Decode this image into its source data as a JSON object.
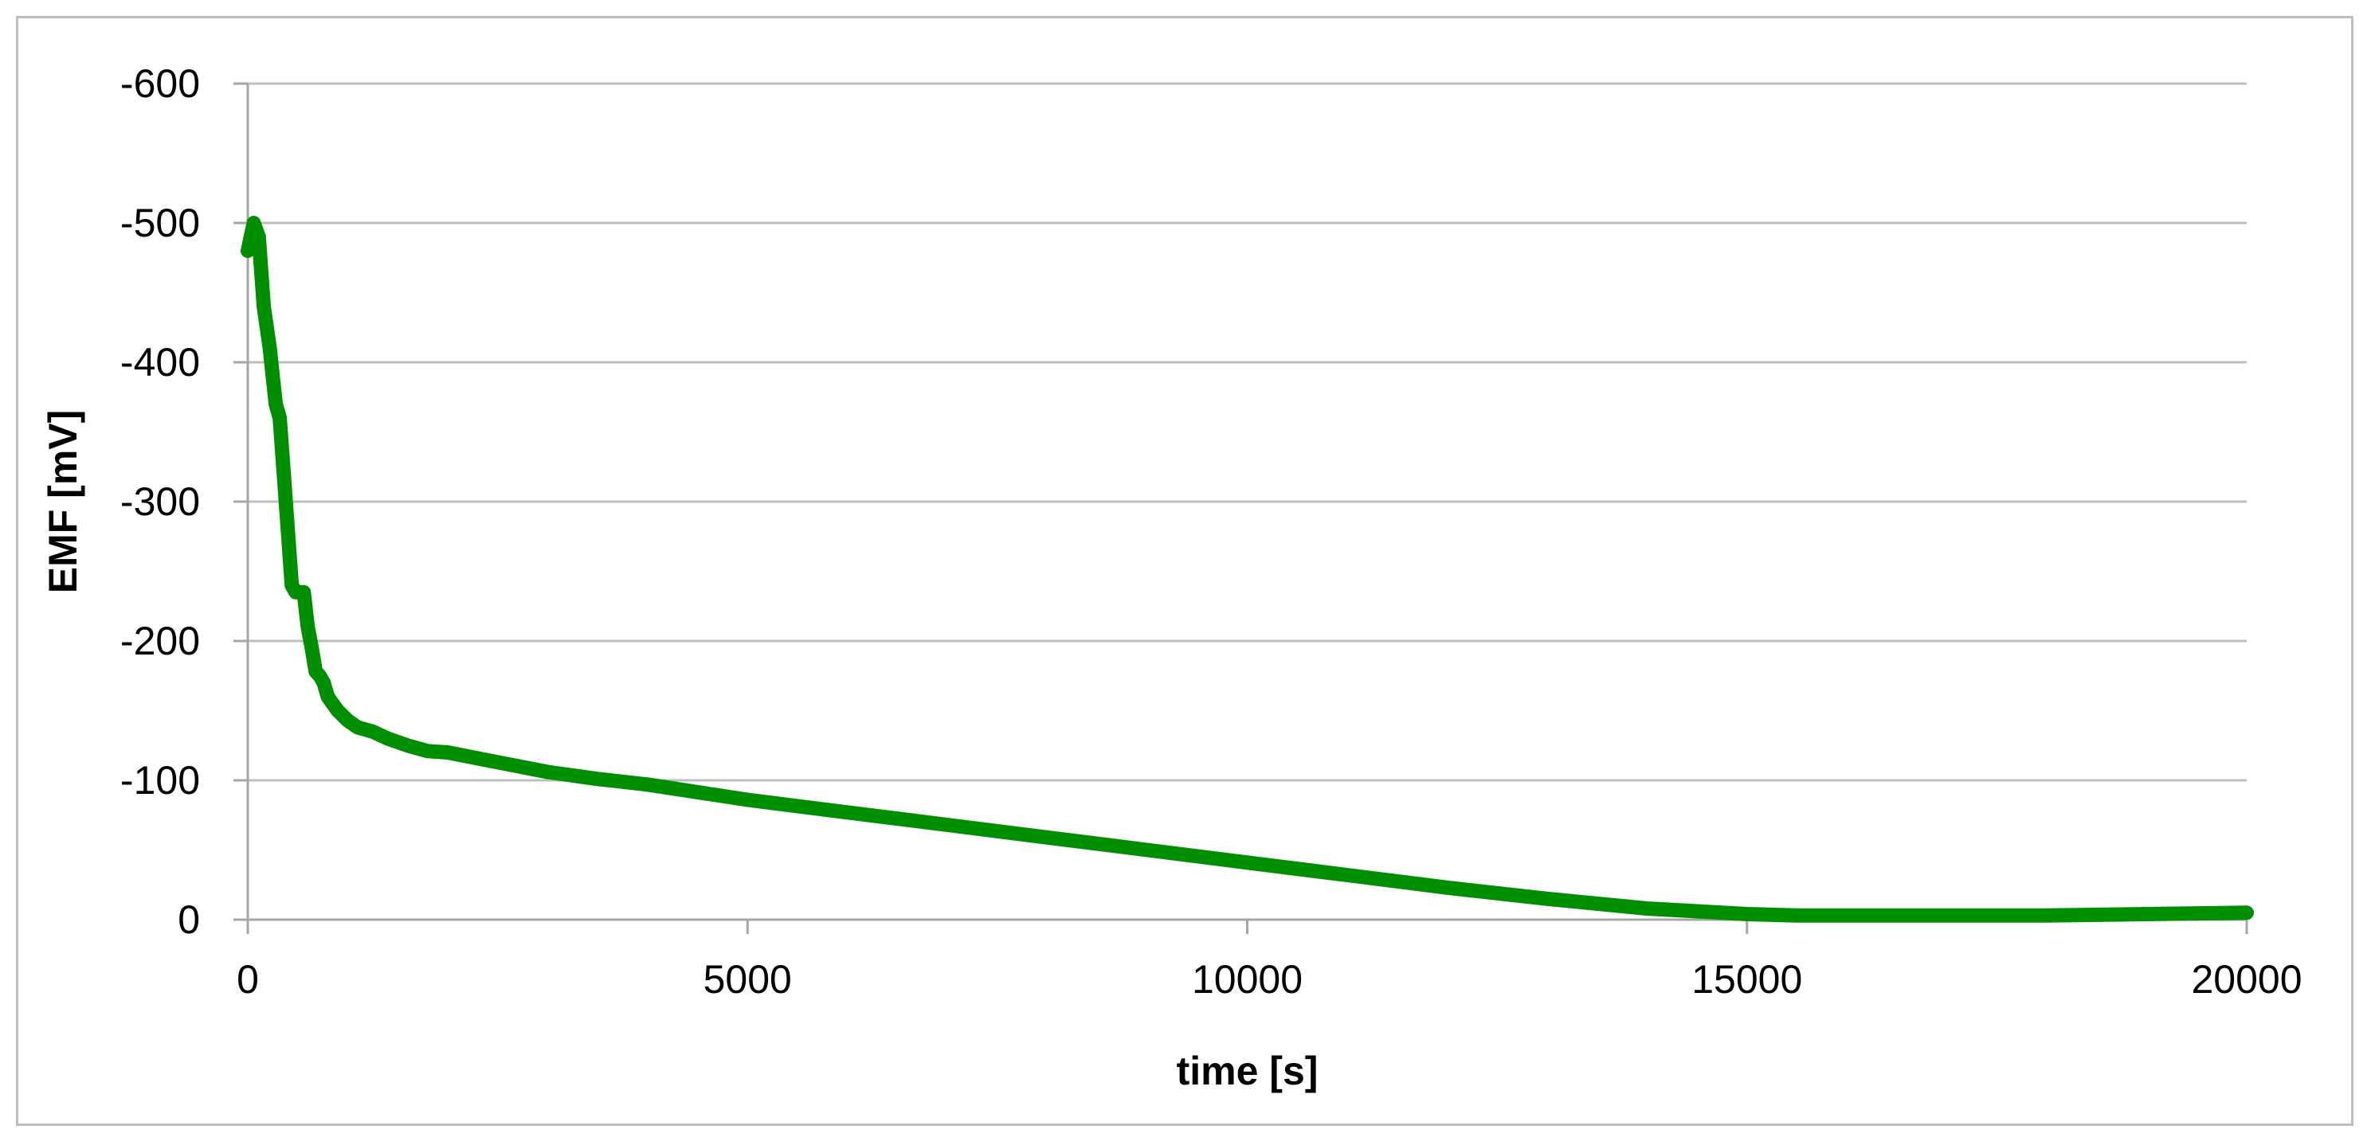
{
  "chart_data": {
    "type": "line",
    "title": "",
    "xlabel": "time [s]",
    "ylabel": "EMF [mV]",
    "xlim": [
      0,
      20000
    ],
    "ylim": [
      0,
      -600
    ],
    "x_ticks": [
      "0",
      "5000",
      "10000",
      "15000",
      "20000"
    ],
    "y_ticks": [
      "0",
      "-100",
      "-200",
      "-300",
      "-400",
      "-500",
      "-600"
    ],
    "x_tick_values": [
      0,
      5000,
      10000,
      15000,
      20000
    ],
    "y_tick_values": [
      0,
      -100,
      -200,
      -300,
      -400,
      -500,
      -600
    ],
    "grid": true,
    "colors": {
      "line": "#008f00",
      "grid": "#bdbdbd",
      "axis": "#a6a6a6"
    },
    "series": [
      {
        "x": [
          0,
          60,
          110,
          160,
          220,
          280,
          320,
          360,
          400,
          440,
          480,
          520,
          560,
          600,
          640,
          680,
          720,
          760,
          800,
          850,
          900,
          1000,
          1100,
          1250,
          1400,
          1600,
          1800,
          2000,
          2500,
          3000,
          3500,
          4000,
          5000,
          6000,
          7000,
          8000,
          9000,
          10000,
          11000,
          12000,
          13000,
          14000,
          15000,
          15500,
          16000,
          17000,
          18000,
          19000,
          20000
        ],
        "y": [
          -480,
          -500,
          -490,
          -440,
          -410,
          -370,
          -360,
          -320,
          -280,
          -240,
          -235,
          -235,
          -235,
          -210,
          -195,
          -178,
          -175,
          -170,
          -160,
          -155,
          -150,
          -143,
          -138,
          -135,
          -130,
          -125,
          -121,
          -120,
          -113,
          -106,
          -101,
          -97,
          -86,
          -77,
          -68,
          -59,
          -50,
          -41,
          -32,
          -23,
          -15,
          -8,
          -4,
          -3,
          -3,
          -3,
          -3,
          -4,
          -5
        ]
      }
    ]
  }
}
